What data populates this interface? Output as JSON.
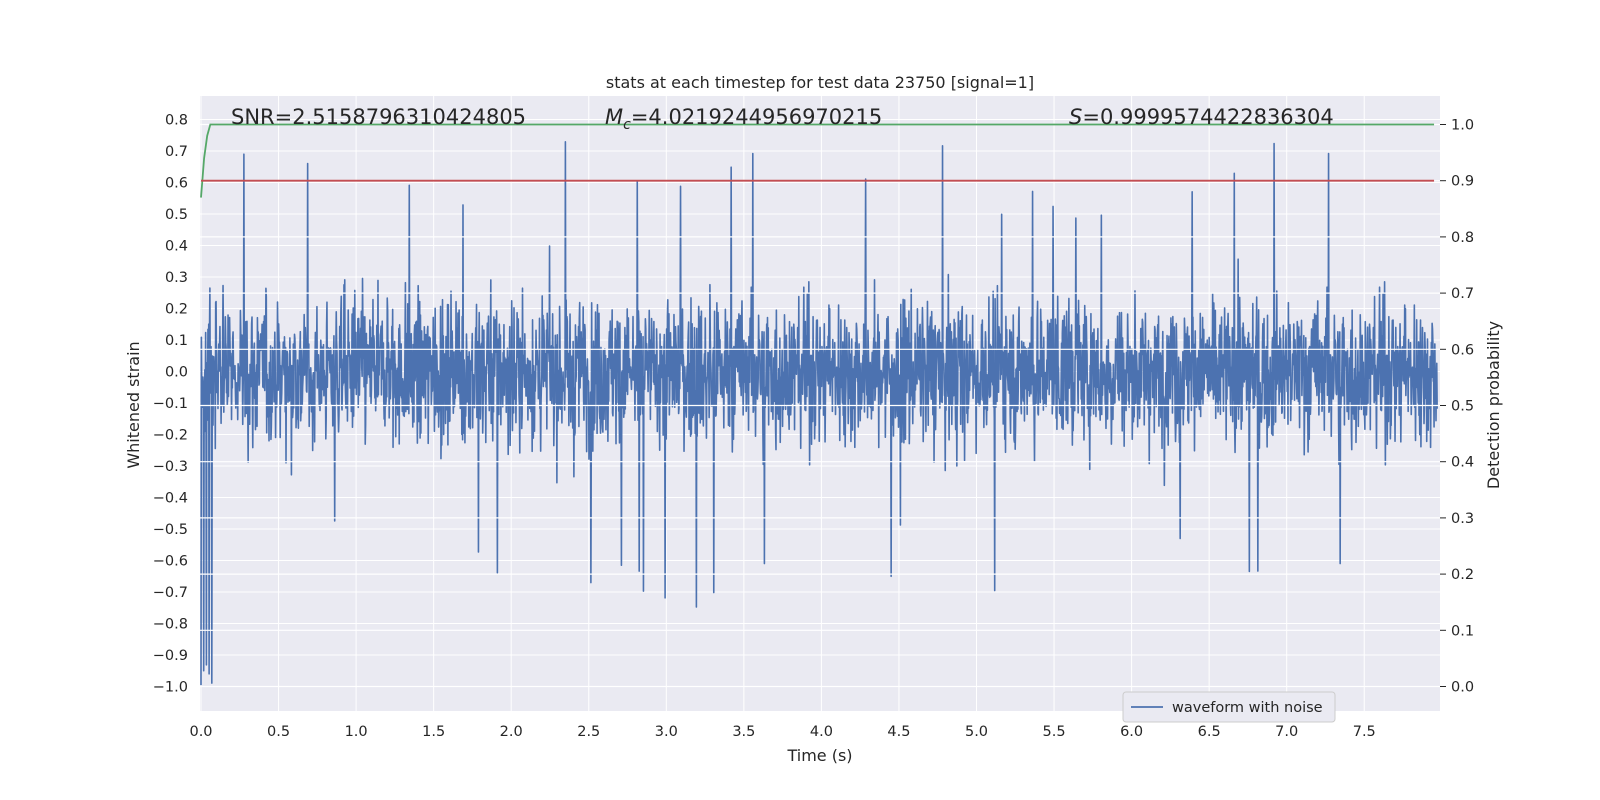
{
  "chart_data": {
    "type": "line",
    "title": "stats at each timestep for test data 23750 [signal=1]",
    "xlabel": "Time (s)",
    "ylabel_left": "Whitened strain",
    "ylabel_right": "Detection probability",
    "xlim": [
      0.0,
      8.0
    ],
    "ylim_left": [
      -1.05,
      0.85
    ],
    "ylim_right": [
      -0.05,
      1.05
    ],
    "x_ticks": [
      "0.0",
      "0.5",
      "1.0",
      "1.5",
      "2.0",
      "2.5",
      "3.0",
      "3.5",
      "4.0",
      "4.5",
      "5.0",
      "5.5",
      "6.0",
      "6.5",
      "7.0",
      "7.5"
    ],
    "y_ticks_left": [
      "0.8",
      "0.7",
      "0.6",
      "0.5",
      "0.4",
      "0.3",
      "0.2",
      "0.1",
      "0.0",
      "−0.1",
      "−0.2",
      "−0.3",
      "−0.4",
      "−0.5",
      "−0.6",
      "−0.7",
      "−0.8",
      "−0.9",
      "−1.0"
    ],
    "y_ticks_right": [
      "1.0",
      "0.9",
      "0.8",
      "0.7",
      "0.6",
      "0.5",
      "0.4",
      "0.3",
      "0.2",
      "0.1",
      "0.0"
    ],
    "grid": true,
    "legend_position": "lower-right",
    "annotations": {
      "snr": "SNR=2.5158796310424805",
      "mc_symbol": "M",
      "mc_sub": "c",
      "mc_value": "=4.0219244956970215",
      "s_symbol": "S",
      "s_value": "=0.9999574422836304"
    },
    "series": [
      {
        "name": "waveform with noise",
        "axis": "left",
        "color": "#4c72b0",
        "description_range": [
          -1.0,
          0.79
        ],
        "sample_rate_hz": 2048
      },
      {
        "axis": "right",
        "color": "#55a868",
        "x": [
          0.0,
          0.02,
          0.04,
          0.06,
          7.95
        ],
        "y": [
          0.87,
          0.94,
          0.98,
          1.0,
          1.0
        ]
      },
      {
        "axis": "right",
        "color": "#c44e52",
        "x": [
          0.0,
          7.95
        ],
        "y": [
          0.9,
          0.9
        ]
      }
    ]
  }
}
